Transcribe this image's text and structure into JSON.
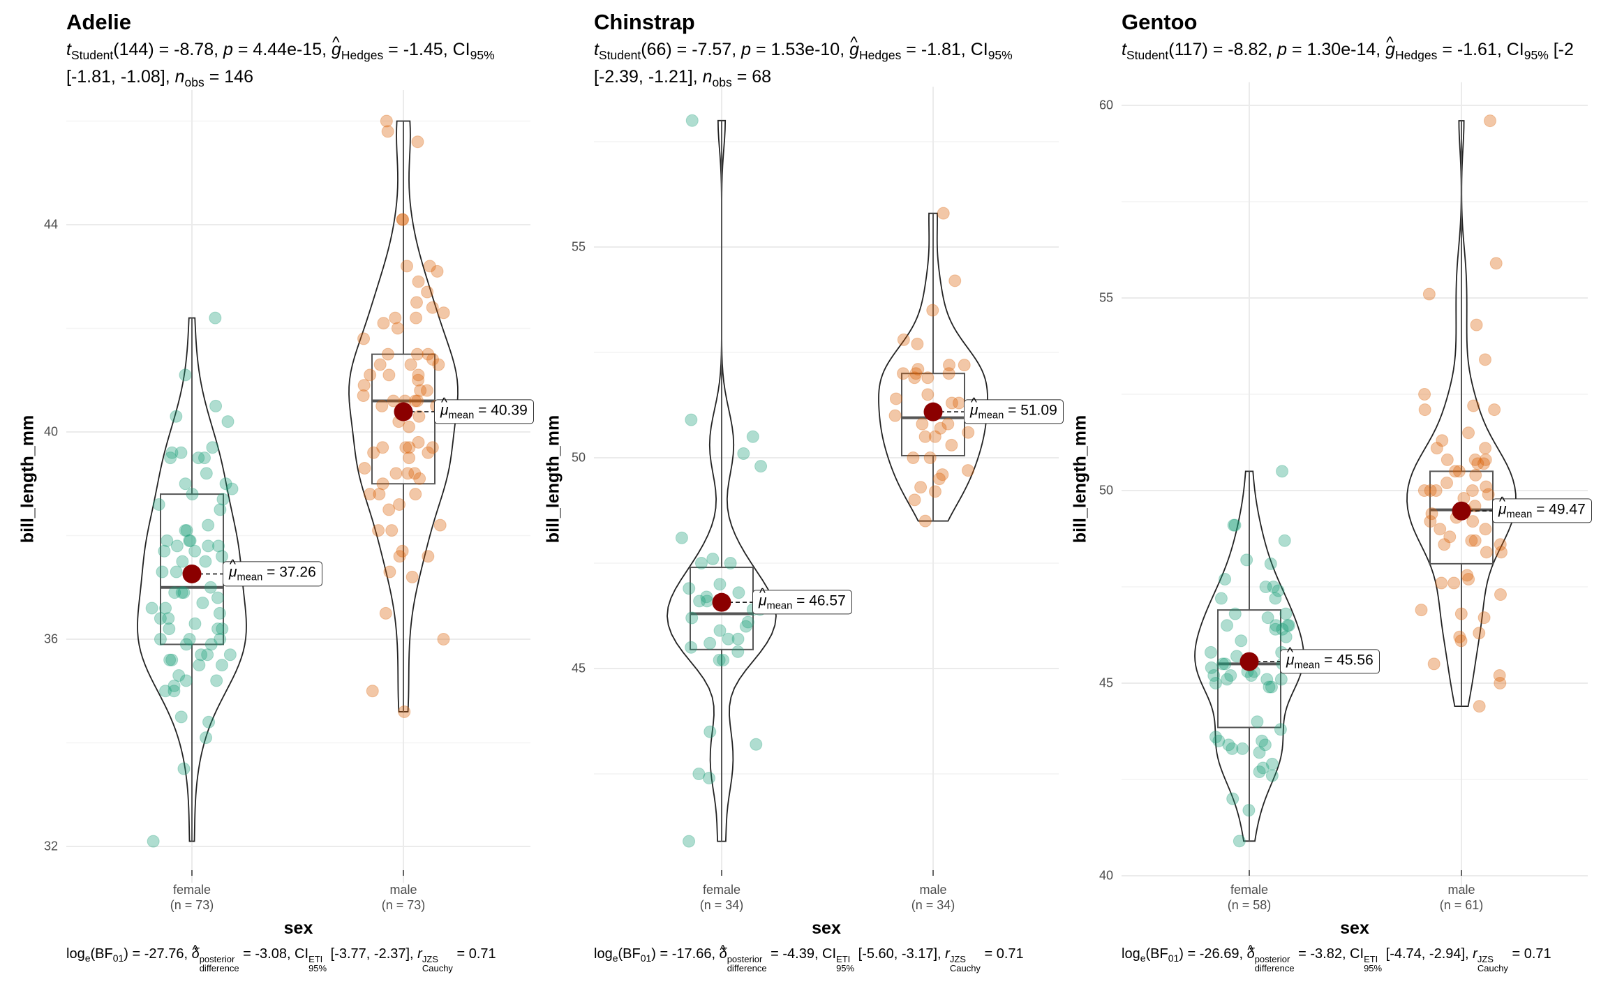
{
  "colors": {
    "female": "#1b9e77",
    "male": "#d95f02",
    "mean_point": "#8b0000",
    "grid": "#ebebeb"
  },
  "chart_data": [
    {
      "type": "violin",
      "title": "Adelie",
      "subtitle": [
        {
          "t": "t",
          "s": "i"
        },
        {
          "t": "Student",
          "s": "sub"
        },
        {
          "t": "(144) = -8.78, "
        },
        {
          "t": "p",
          "s": "i"
        },
        {
          "t": " = 4.44e-15, "
        },
        {
          "t": "g",
          "s": "hat"
        },
        {
          "t": "Hedges",
          "s": "sub"
        },
        {
          "t": " = -1.45, CI"
        },
        {
          "t": "95%",
          "s": "sub"
        },
        {
          "t": " [-1.81, -1.08], "
        },
        {
          "t": "n",
          "s": "i"
        },
        {
          "t": "obs",
          "s": "sub"
        },
        {
          "t": " = 146"
        }
      ],
      "xlabel": "sex",
      "ylabel": "bill_length_mm",
      "yticks": [
        32,
        36,
        40,
        44
      ],
      "ylim": [
        31.3,
        46.6
      ],
      "grid": true,
      "categories": [
        {
          "name": "female",
          "n_label": "(n = 73)",
          "mean": 37.26,
          "mean_label": "37.26",
          "box": {
            "lo": 32.1,
            "q1": 35.9,
            "median": 37.0,
            "q3": 38.8,
            "hi": 42.2
          },
          "values": [
            39.5,
            40.3,
            36.7,
            38.9,
            39.2,
            34.1,
            36.6,
            38.7,
            34.4,
            37.8,
            35.9,
            35.3,
            40.5,
            37.9,
            39.5,
            39.5,
            36.4,
            42.2,
            37.6,
            36.5,
            36.0,
            36.0,
            37.0,
            39.6,
            35.0,
            34.5,
            39.0,
            35.5,
            39.0,
            35.2,
            36.2,
            35.0,
            37.7,
            37.8,
            36.9,
            38.8,
            35.7,
            37.9,
            39.7,
            35.6,
            38.1,
            36.2,
            36.8,
            37.3,
            37.7,
            36.0,
            37.8,
            36.4,
            35.5,
            38.6,
            35.7,
            36.9,
            38.2,
            39.6,
            37.5,
            33.5,
            38.1,
            40.2,
            35.9,
            32.1,
            35.6,
            37.3,
            37.5,
            36.6,
            36.9,
            35.1,
            41.1,
            36.2,
            35.2,
            37.9,
            36.3,
            38.5,
            35.7
          ]
        },
        {
          "name": "male",
          "n_label": "(n = 73)",
          "mean": 40.39,
          "mean_label": "40.39",
          "box": {
            "lo": 34.6,
            "q1": 39.0,
            "median": 40.6,
            "q3": 41.5,
            "hi": 46.0
          },
          "values": [
            39.1,
            39.3,
            39.2,
            38.6,
            34.6,
            42.5,
            46.0,
            37.7,
            38.2,
            38.8,
            40.6,
            40.5,
            37.2,
            40.9,
            39.2,
            38.8,
            42.2,
            37.6,
            39.8,
            36.5,
            40.8,
            36.0,
            44.1,
            38.1,
            40.1,
            40.6,
            41.4,
            39.7,
            40.3,
            38.8,
            41.3,
            41.1,
            39.7,
            37.6,
            41.5,
            41.5,
            39.7,
            40.5,
            39.6,
            39.2,
            42.0,
            41.8,
            41.1,
            40.8,
            43.2,
            42.7,
            42.3,
            41.3,
            42.4,
            45.8,
            40.7,
            42.1,
            39.7,
            40.6,
            42.9,
            41.5,
            44.1,
            42.2,
            43.1,
            41.0,
            39.6,
            39.5,
            41.3,
            45.6,
            40.2,
            38.5,
            41.1,
            38.1,
            40.6,
            39.0,
            37.3,
            35.0,
            43.2
          ]
        }
      ],
      "caption": [
        {
          "t": "log"
        },
        {
          "t": "e",
          "s": "sub"
        },
        {
          "t": "(BF"
        },
        {
          "t": "01",
          "s": "sub"
        },
        {
          "t": ") = -27.76, "
        },
        {
          "t": "δ",
          "s": "hat"
        },
        {
          "t": "posterior",
          "s2": "difference",
          "s": "ss"
        },
        {
          "t": " = -3.08, CI"
        },
        {
          "t": "ETI",
          "s2": "95%",
          "s": "ss"
        },
        {
          "t": " [-3.77, -2.37], "
        },
        {
          "t": "r",
          "s": "i"
        },
        {
          "t": "JZS",
          "s2": "Cauchy",
          "s": "ss"
        },
        {
          "t": " = 0.71"
        }
      ]
    },
    {
      "type": "violin",
      "title": "Chinstrap",
      "subtitle": [
        {
          "t": "t",
          "s": "i"
        },
        {
          "t": "Student",
          "s": "sub"
        },
        {
          "t": "(66) = -7.57, "
        },
        {
          "t": "p",
          "s": "i"
        },
        {
          "t": " = 1.53e-10, "
        },
        {
          "t": "g",
          "s": "hat"
        },
        {
          "t": "Hedges",
          "s": "sub"
        },
        {
          "t": " = -1.81, CI"
        },
        {
          "t": "95%",
          "s": "sub"
        },
        {
          "t": " [-2.39, -1.21], "
        },
        {
          "t": "n",
          "s": "i"
        },
        {
          "t": "obs",
          "s": "sub"
        },
        {
          "t": " = 68"
        }
      ],
      "xlabel": "sex",
      "ylabel": "bill_length_mm",
      "yticks": [
        45,
        50,
        55
      ],
      "ylim": [
        40.2,
        58.8
      ],
      "grid": true,
      "categories": [
        {
          "name": "female",
          "n_label": "(n = 34)",
          "mean": 46.57,
          "mean_label": "46.57",
          "box": {
            "lo": 40.9,
            "q1": 45.45,
            "median": 46.3,
            "q3": 47.4,
            "hi": 58.0
          },
          "values": [
            46.5,
            45.4,
            45.2,
            46.1,
            46.0,
            46.6,
            47.0,
            45.9,
            58.0,
            46.4,
            42.4,
            48.1,
            47.5,
            47.6,
            46.9,
            46.2,
            45.5,
            50.9,
            50.1,
            46.8,
            45.7,
            45.6,
            42.5,
            45.2,
            43.2,
            46.7,
            40.9,
            50.5,
            43.5,
            49.8,
            46.6,
            47.5,
            45.7,
            46.4
          ]
        },
        {
          "name": "male",
          "n_label": "(n = 34)",
          "mean": 51.09,
          "mean_label": "51.09",
          "box": {
            "lo": 48.5,
            "q1": 50.05,
            "median": 50.95,
            "q3": 52.0,
            "hi": 55.8
          },
          "values": [
            50.0,
            51.3,
            52.7,
            51.3,
            52.0,
            50.5,
            50.3,
            49.2,
            52.0,
            50.8,
            49.0,
            52.8,
            54.2,
            51.0,
            52.0,
            53.5,
            50.0,
            50.8,
            52.2,
            55.8,
            49.5,
            49.3,
            51.5,
            51.9,
            50.7,
            52.1,
            50.6,
            49.7,
            49.6,
            50.5,
            52.2,
            51.9,
            51.4,
            48.5
          ]
        }
      ],
      "caption": [
        {
          "t": "log"
        },
        {
          "t": "e",
          "s": "sub"
        },
        {
          "t": "(BF"
        },
        {
          "t": "01",
          "s": "sub"
        },
        {
          "t": ") = -17.66, "
        },
        {
          "t": "δ",
          "s": "hat"
        },
        {
          "t": "posterior",
          "s2": "difference",
          "s": "ss"
        },
        {
          "t": " = -4.39, CI"
        },
        {
          "t": "ETI",
          "s2": "95%",
          "s": "ss"
        },
        {
          "t": " [-5.60, -3.17], "
        },
        {
          "t": "r",
          "s": "i"
        },
        {
          "t": "JZS",
          "s2": "Cauchy",
          "s": "ss"
        },
        {
          "t": " = 0.71"
        }
      ]
    },
    {
      "type": "violin",
      "title": "Gentoo",
      "subtitle": [
        {
          "t": "t",
          "s": "i"
        },
        {
          "t": "Student",
          "s": "sub"
        },
        {
          "t": "(117) = -8.82, "
        },
        {
          "t": "p",
          "s": "i"
        },
        {
          "t": " = 1.30e-14, "
        },
        {
          "t": "g",
          "s": "hat"
        },
        {
          "t": "Hedges",
          "s": "sub"
        },
        {
          "t": " = -1.61, CI"
        },
        {
          "t": "95%",
          "s": "sub"
        },
        {
          "t": " [-2"
        }
      ],
      "xlabel": "sex",
      "ylabel": "bill_length_mm",
      "yticks": [
        40,
        45,
        50,
        55,
        60
      ],
      "ylim": [
        39.6,
        60.6
      ],
      "grid": true,
      "categories": [
        {
          "name": "female",
          "n_label": "(n = 58)",
          "mean": 45.56,
          "mean_label": "45.56",
          "box": {
            "lo": 40.9,
            "q1": 43.85,
            "median": 45.5,
            "q3": 46.9,
            "hi": 50.5
          },
          "values": [
            46.1,
            48.7,
            46.5,
            45.4,
            43.3,
            40.9,
            45.5,
            45.8,
            42.0,
            46.2,
            45.1,
            46.5,
            42.9,
            48.2,
            42.8,
            45.1,
            49.1,
            42.6,
            44.0,
            42.7,
            45.3,
            43.6,
            45.5,
            44.9,
            45.8,
            43.5,
            43.3,
            47.2,
            46.7,
            46.8,
            45.2,
            43.8,
            45.5,
            43.5,
            46.5,
            46.4,
            47.5,
            45.2,
            49.1,
            47.4,
            44.9,
            43.4,
            47.5,
            47.7,
            46.5,
            46.4,
            48.1,
            45.1,
            47.2,
            45.0,
            43.4,
            45.7,
            45.3,
            41.7,
            45.2,
            46.8,
            43.2,
            50.5
          ]
        },
        {
          "name": "male",
          "n_label": "(n = 61)",
          "mean": 49.47,
          "mean_label": "49.47",
          "box": {
            "lo": 44.4,
            "q1": 48.1,
            "median": 49.5,
            "q3": 50.5,
            "hi": 59.6
          },
          "values": [
            50.0,
            50.0,
            47.6,
            46.7,
            46.8,
            50.0,
            47.8,
            49.2,
            48.4,
            49.3,
            49.2,
            48.7,
            50.2,
            50.0,
            47.7,
            49.5,
            50.7,
            50.5,
            52.5,
            48.4,
            49.0,
            50.8,
            49.0,
            51.1,
            48.7,
            55.9,
            47.6,
            50.5,
            45.2,
            50.4,
            46.2,
            54.3,
            49.8,
            49.5,
            50.7,
            46.3,
            48.6,
            51.3,
            52.1,
            45.5,
            59.6,
            49.5,
            50.8,
            46.9,
            55.1,
            48.6,
            50.1,
            51.5,
            45.0,
            53.4,
            44.4,
            49.9,
            47.3,
            52.2,
            50.8,
            49.4,
            51.1,
            48.8,
            49.6,
            46.1,
            52.1
          ]
        }
      ],
      "caption": [
        {
          "t": "log"
        },
        {
          "t": "e",
          "s": "sub"
        },
        {
          "t": "(BF"
        },
        {
          "t": "01",
          "s": "sub"
        },
        {
          "t": ") = -26.69, "
        },
        {
          "t": "δ",
          "s": "hat"
        },
        {
          "t": "posterior",
          "s2": "difference",
          "s": "ss"
        },
        {
          "t": " = -3.82, CI"
        },
        {
          "t": "ETI",
          "s2": "95%",
          "s": "ss"
        },
        {
          "t": " [-4.74, -2.94], "
        },
        {
          "t": "r",
          "s": "i"
        },
        {
          "t": "JZS",
          "s2": "Cauchy",
          "s": "ss"
        },
        {
          "t": " = 0.71"
        }
      ]
    }
  ],
  "mean_label": {
    "symbol": "μ",
    "sub": "mean",
    "eq": " = "
  }
}
